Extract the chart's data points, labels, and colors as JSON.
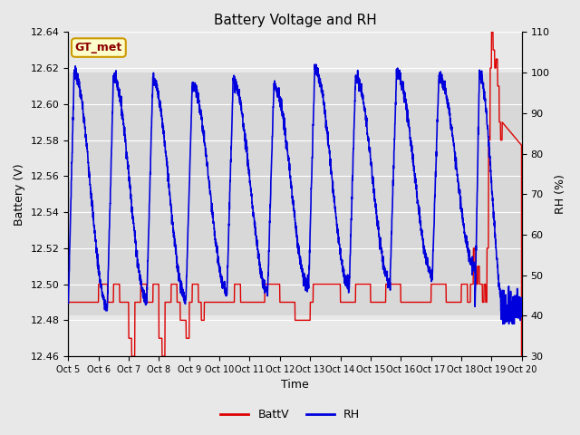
{
  "title": "Battery Voltage and RH",
  "xlabel": "Time",
  "ylabel_left": "Battery (V)",
  "ylabel_right": "RH (%)",
  "annotation": "GT_met",
  "left_ylim": [
    12.46,
    12.64
  ],
  "right_ylim": [
    30,
    110
  ],
  "left_yticks": [
    12.46,
    12.48,
    12.5,
    12.52,
    12.54,
    12.56,
    12.58,
    12.6,
    12.62,
    12.64
  ],
  "right_yticks": [
    30,
    40,
    50,
    60,
    70,
    80,
    90,
    100,
    110
  ],
  "x_tick_labels": [
    "Oct 5",
    "Oct 6",
    "Oct 7",
    "Oct 8",
    "Oct 9",
    "Oct 10",
    "Oct 11",
    "Oct 12",
    "Oct 13",
    "Oct 14",
    "Oct 15",
    "Oct 16",
    "Oct 17",
    "Oct 18",
    "Oct 19",
    "Oct 20"
  ],
  "bg_color": "#e8e8e8",
  "plot_bg_color": "#d8d8d8",
  "grid_color": "#c0c0c0",
  "band_color": "#d0d0d0",
  "line_color_battv": "#dd0000",
  "line_color_rh": "#0000dd",
  "legend_battv": "BattV",
  "legend_rh": "RH",
  "figwidth": 6.4,
  "figheight": 4.8,
  "dpi": 100
}
